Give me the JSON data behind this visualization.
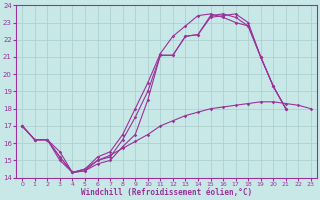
{
  "bg_color": "#c8e8e8",
  "line_color": "#993399",
  "grid_color": "#aacccc",
  "xlabel": "Windchill (Refroidissement éolien,°C)",
  "xlim": [
    -0.5,
    23.5
  ],
  "ylim": [
    14,
    24
  ],
  "yticks": [
    14,
    15,
    16,
    17,
    18,
    19,
    20,
    21,
    22,
    23,
    24
  ],
  "xticks": [
    0,
    1,
    2,
    3,
    4,
    5,
    6,
    7,
    8,
    9,
    10,
    11,
    12,
    13,
    14,
    15,
    16,
    17,
    18,
    19,
    20,
    21,
    22,
    23
  ],
  "series": [
    {
      "x": [
        0,
        1,
        2,
        3,
        4,
        5,
        6,
        7,
        8,
        9,
        10,
        11,
        12,
        13,
        14,
        15,
        16,
        17,
        18,
        19,
        20,
        21,
        22,
        23
      ],
      "y": [
        17.0,
        16.2,
        16.2,
        15.0,
        14.3,
        14.4,
        14.8,
        15.0,
        15.8,
        16.5,
        18.5,
        21.1,
        21.1,
        22.2,
        22.3,
        23.3,
        23.4,
        23.5,
        23.0,
        21.0,
        19.3,
        18.0,
        null,
        null
      ]
    },
    {
      "x": [
        0,
        1,
        2,
        3,
        4,
        5,
        6,
        7,
        8,
        9,
        10,
        11,
        12,
        13,
        14,
        15,
        16,
        17,
        18,
        19,
        20,
        21,
        22,
        23
      ],
      "y": [
        17.0,
        16.2,
        16.2,
        15.5,
        14.3,
        14.4,
        15.0,
        15.2,
        16.2,
        17.5,
        19.0,
        21.1,
        21.1,
        22.2,
        22.3,
        23.4,
        23.5,
        23.3,
        22.8,
        21.0,
        19.3,
        18.0,
        null,
        null
      ]
    },
    {
      "x": [
        0,
        1,
        2,
        3,
        4,
        5,
        6,
        7,
        8,
        9,
        10,
        11,
        12,
        13,
        14,
        15,
        16,
        17,
        18,
        19,
        20,
        21,
        22,
        23
      ],
      "y": [
        17.0,
        16.2,
        16.2,
        15.2,
        14.3,
        14.5,
        15.2,
        15.5,
        16.5,
        18.0,
        19.5,
        21.2,
        22.2,
        22.8,
        23.4,
        23.5,
        23.3,
        23.0,
        22.8,
        21.0,
        19.3,
        18.0,
        null,
        null
      ]
    },
    {
      "x": [
        0,
        1,
        2,
        3,
        4,
        5,
        6,
        7,
        8,
        9,
        10,
        11,
        12,
        13,
        14,
        15,
        16,
        17,
        18,
        19,
        20,
        21,
        22,
        23
      ],
      "y": [
        17.0,
        16.2,
        16.2,
        15.2,
        14.3,
        14.5,
        15.0,
        15.3,
        15.7,
        16.1,
        16.5,
        17.0,
        17.3,
        17.6,
        17.8,
        18.0,
        18.1,
        18.2,
        18.3,
        18.4,
        18.4,
        18.3,
        18.2,
        18.0
      ]
    }
  ]
}
